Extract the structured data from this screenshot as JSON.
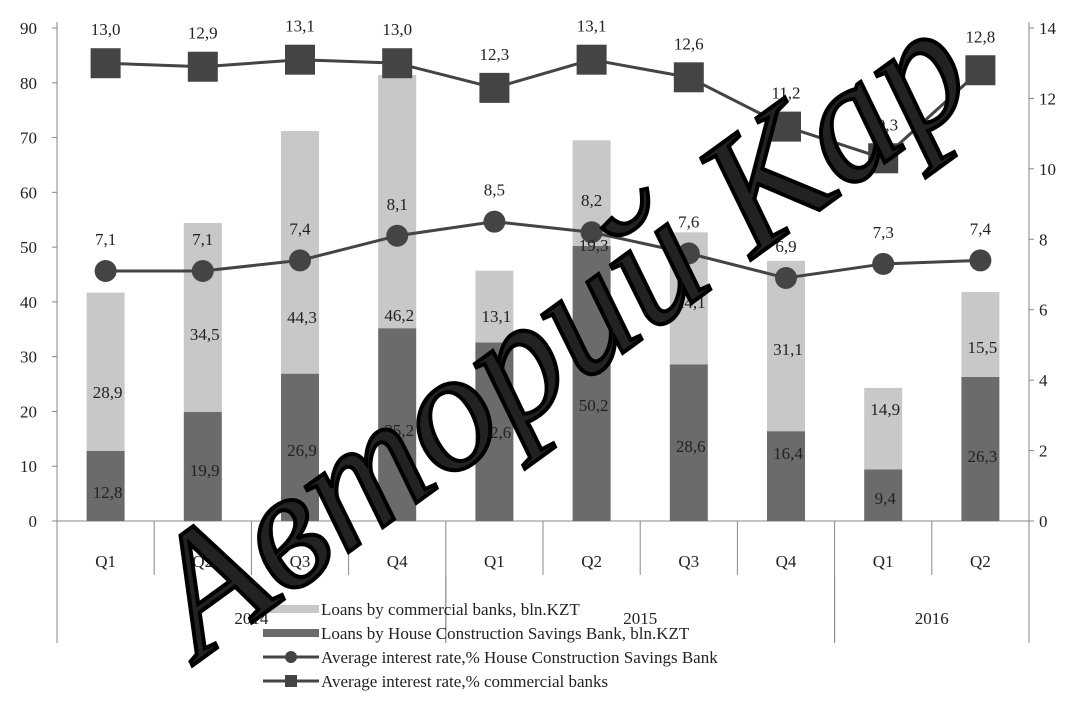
{
  "chart_data": {
    "type": "bar",
    "categories": [
      "Q1",
      "Q2",
      "Q3",
      "Q4",
      "Q1",
      "Q2",
      "Q3",
      "Q4",
      "Q1",
      "Q2"
    ],
    "years": [
      {
        "label": "2014",
        "span": [
          0,
          3
        ]
      },
      {
        "label": "2015",
        "span": [
          4,
          7
        ]
      },
      {
        "label": "2016",
        "span": [
          8,
          9
        ]
      }
    ],
    "y_left": {
      "ylim": [
        0,
        90
      ],
      "ticks": [
        0,
        10,
        20,
        30,
        40,
        50,
        60,
        70,
        80,
        90
      ]
    },
    "y_right": {
      "ylim": [
        0,
        14
      ],
      "ticks": [
        0,
        2,
        4,
        6,
        8,
        10,
        12,
        14
      ],
      "tick_labels": [
        "0",
        "2",
        "4",
        "6",
        "8",
        "10",
        "12",
        "14"
      ]
    },
    "series": [
      {
        "name": "Loans by House Construction Savings Bank, bln.KZT",
        "kind": "bar-stack-bottom",
        "axis": "left",
        "color": "#6b6b6b",
        "values": [
          12.8,
          19.9,
          26.9,
          35.2,
          32.6,
          50.2,
          28.6,
          16.4,
          9.4,
          26.3
        ],
        "labels": [
          "12,8",
          "19,9",
          "26,9",
          "35,2",
          "32,6",
          "50,2",
          "28,6",
          "16,4",
          "9,4",
          "26,3"
        ]
      },
      {
        "name": "Loans by commercial banks, bln.KZT",
        "kind": "bar-stack-top",
        "axis": "left",
        "color": "#c8c8c8",
        "values": [
          28.9,
          34.5,
          44.3,
          46.2,
          13.1,
          19.3,
          24.1,
          31.1,
          14.9,
          15.5
        ],
        "labels": [
          "28,9",
          "34,5",
          "44,3",
          "46,2",
          "13,1",
          "19,3",
          "24,1",
          "31,1",
          "14,9",
          "15,5"
        ]
      },
      {
        "name": "Average interest rate,% House Construction Savings Bank",
        "kind": "line-circle",
        "axis": "right",
        "color": "#444444",
        "values": [
          7.1,
          7.1,
          7.4,
          8.1,
          8.5,
          8.2,
          7.6,
          6.9,
          7.3,
          7.4
        ],
        "labels": [
          "7,1",
          "7,1",
          "7,4",
          "8,1",
          "8,5",
          "8,2",
          "7,6",
          "6,9",
          "7,3",
          "7,4"
        ]
      },
      {
        "name": "Average interest rate,%  commercial banks",
        "kind": "line-square",
        "axis": "right",
        "color": "#444444",
        "values": [
          13.0,
          12.9,
          13.1,
          13.0,
          12.3,
          13.1,
          12.6,
          11.2,
          10.3,
          12.8
        ],
        "labels": [
          "13,0",
          "12,9",
          "13,1",
          "13,0",
          "12,3",
          "13,1",
          "12,6",
          "11,2",
          "10,3",
          "12,8"
        ]
      }
    ],
    "legend": {
      "placement": "bottom",
      "items": [
        "Loans by commercial banks, bln.KZT",
        "Loans by House Construction Savings Bank, bln.KZT",
        "Average interest rate,% House Construction Savings Bank",
        "Average interest rate,%  commercial banks"
      ]
    },
    "grid": false
  },
  "watermark": {
    "text": "Авторий Кар",
    "color": "#000000"
  }
}
